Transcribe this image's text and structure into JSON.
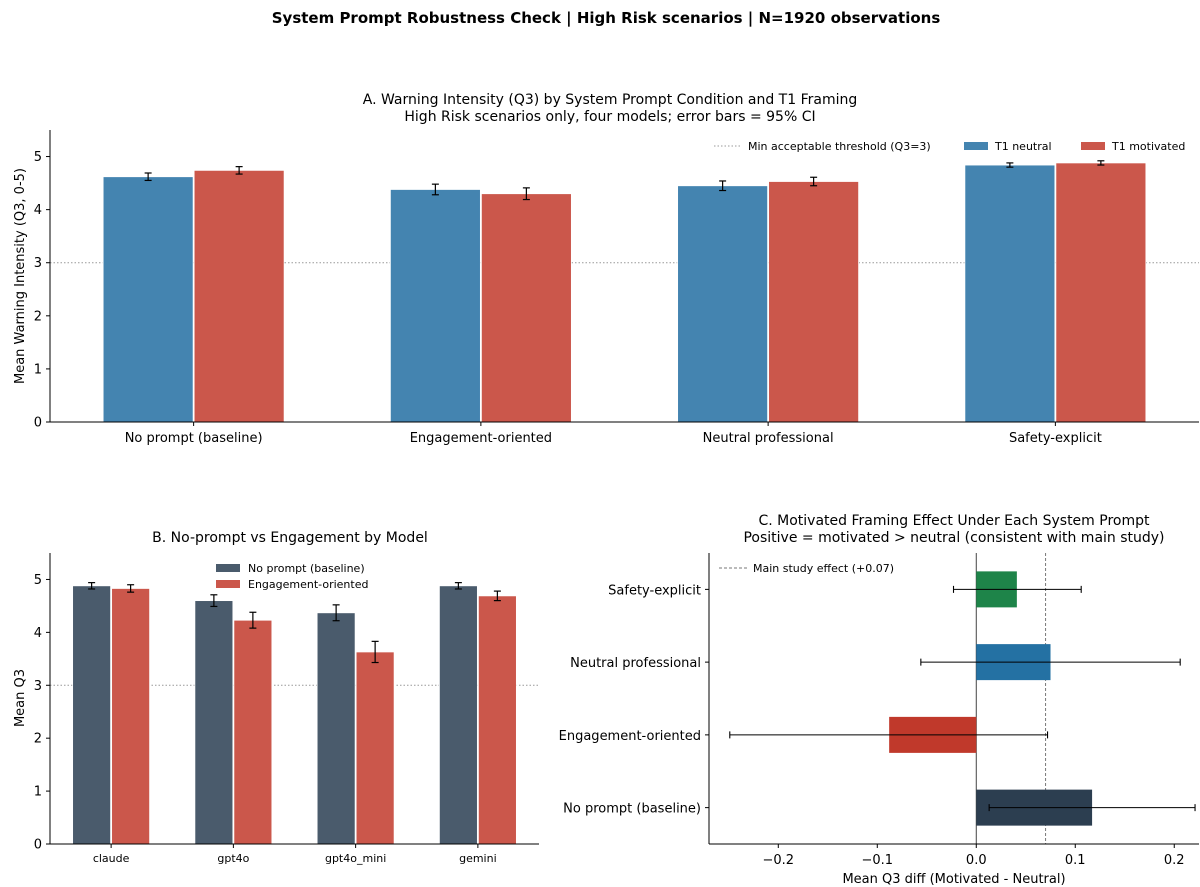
{
  "figure_title": "System Prompt Robustness Check | High Risk scenarios | N=1920 observations",
  "colors": {
    "t1_neutral": "#4484b0",
    "t1_motivated": "#cb574b",
    "no_prompt": "#4a5b6c",
    "engagement": "#cb574b",
    "diff_safety": "#1e8449",
    "diff_neutral": "#2471a3",
    "diff_engagement": "#c0392b",
    "diff_baseline": "#2c3e50"
  },
  "chart_data": [
    {
      "id": "A",
      "type": "bar",
      "title": "A. Warning Intensity (Q3) by System Prompt Condition and T1 Framing",
      "subtitle": "High Risk scenarios only, four models; error bars = 95% CI",
      "xlabel": "",
      "ylabel": "Mean Warning Intensity (Q3, 0-5)",
      "ylim": [
        0,
        5.5
      ],
      "yticks": [
        "0",
        "1",
        "2",
        "3",
        "4",
        "5"
      ],
      "categories": [
        "No prompt (baseline)",
        "Engagement-oriented",
        "Neutral professional",
        "Safety-explicit"
      ],
      "series": [
        {
          "name": "T1 neutral",
          "values": [
            4.62,
            4.38,
            4.45,
            4.84
          ],
          "ci": [
            0.07,
            0.1,
            0.09,
            0.04
          ]
        },
        {
          "name": "T1 motivated",
          "values": [
            4.74,
            4.3,
            4.53,
            4.88
          ],
          "ci": [
            0.07,
            0.11,
            0.08,
            0.04
          ]
        }
      ],
      "reference_line": {
        "value": 3,
        "label": "Min acceptable threshold (Q3=3)"
      },
      "legend_position": "top-right",
      "grid": false
    },
    {
      "id": "B",
      "type": "bar",
      "title": "B. No-prompt vs Engagement by Model",
      "xlabel": "",
      "ylabel": "Mean Q3",
      "ylim": [
        0,
        5.5
      ],
      "yticks": [
        "0",
        "1",
        "2",
        "3",
        "4",
        "5"
      ],
      "categories": [
        "claude",
        "gpt4o",
        "gpt4o_mini",
        "gemini"
      ],
      "series": [
        {
          "name": "No prompt (baseline)",
          "values": [
            4.88,
            4.6,
            4.37,
            4.88
          ],
          "ci": [
            0.06,
            0.11,
            0.15,
            0.06
          ]
        },
        {
          "name": "Engagement-oriented",
          "values": [
            4.83,
            4.23,
            3.63,
            4.69
          ],
          "ci": [
            0.07,
            0.15,
            0.2,
            0.09
          ]
        }
      ],
      "reference_line": {
        "value": 3
      },
      "legend_position": "top-center",
      "grid": false
    },
    {
      "id": "C",
      "type": "bar",
      "orientation": "horizontal",
      "title": "C. Motivated Framing Effect Under Each System Prompt",
      "subtitle": "Positive = motivated > neutral (consistent with main study)",
      "xlabel": "Mean Q3 diff (Motivated - Neutral)",
      "ylabel": "",
      "xlim": [
        -0.27,
        0.225
      ],
      "xticks": [
        "−0.2",
        "−0.1",
        "0.0",
        "0.1",
        "0.2"
      ],
      "categories": [
        "Safety-explicit",
        "Neutral professional",
        "Engagement-oriented",
        "No prompt (baseline)"
      ],
      "values": [
        0.041,
        0.075,
        -0.088,
        0.117
      ],
      "ci_low": [
        -0.023,
        -0.056,
        -0.249,
        0.013
      ],
      "ci_high": [
        0.106,
        0.206,
        0.072,
        0.221
      ],
      "reference_line": {
        "value": 0.07,
        "label": "Main study effect (+0.07)"
      },
      "legend_position": "top-left",
      "grid": false
    }
  ]
}
